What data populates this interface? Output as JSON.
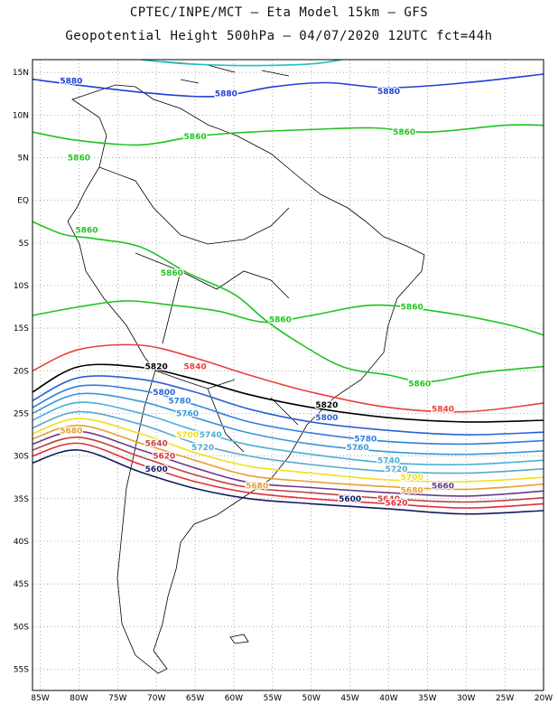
{
  "header": {
    "line1": "CPTEC/INPE/MCT –  Eta Model 15km – GFS",
    "line2": "Geopotential Height 500hPa – 04/07/2020 12UTC fct=44h"
  },
  "axes": {
    "lat_ticks": [
      "15N",
      "10N",
      "5N",
      "EQ",
      "5S",
      "10S",
      "15S",
      "20S",
      "25S",
      "30S",
      "35S",
      "40S",
      "45S",
      "50S",
      "55S"
    ],
    "lon_ticks": [
      "85W",
      "80W",
      "75W",
      "70W",
      "65W",
      "60W",
      "55W",
      "50W",
      "45W",
      "40W",
      "35W",
      "30W",
      "25W",
      "20W"
    ]
  },
  "contours": [
    {
      "value": 5880,
      "label": "5880",
      "color": "#1f3fd6",
      "labels": [
        [
          -81,
          14
        ],
        [
          -61,
          12.5
        ],
        [
          -40,
          12.8
        ]
      ]
    },
    {
      "value": 5860,
      "label": "5860",
      "color": "#1fc41f",
      "labels": [
        [
          -65,
          7.5
        ],
        [
          -80,
          5
        ],
        [
          -38,
          8
        ],
        [
          -79,
          -3.5
        ],
        [
          -68,
          -8.5
        ],
        [
          -54,
          -14
        ],
        [
          -37,
          -12.5
        ],
        [
          -36,
          -21.5
        ]
      ]
    },
    {
      "value": 5840,
      "label": "5840",
      "color": "#e8403a",
      "labels": [
        [
          -65,
          -19.5
        ],
        [
          -33,
          -24.5
        ]
      ]
    },
    {
      "value": 5820,
      "label": "5820",
      "color": "#000000",
      "labels": [
        [
          -70,
          -19.5
        ],
        [
          -48,
          -24
        ]
      ]
    },
    {
      "value": 5800,
      "label": "5800",
      "color": "#2a5fd6",
      "labels": [
        [
          -69,
          -22.5
        ],
        [
          -48,
          -25.5
        ]
      ]
    },
    {
      "value": 5780,
      "label": "5780",
      "color": "#2f7fe0",
      "labels": [
        [
          -67,
          -23.5
        ],
        [
          -43,
          -28
        ]
      ]
    },
    {
      "value": 5760,
      "label": "5760",
      "color": "#3a97d8",
      "labels": [
        [
          -66,
          -25
        ],
        [
          -44,
          -29
        ]
      ]
    },
    {
      "value": 5740,
      "label": "5740",
      "color": "#4ab0d6",
      "labels": [
        [
          -63,
          -27.5
        ],
        [
          -40,
          -30.5
        ]
      ]
    },
    {
      "value": 5720,
      "label": "5720",
      "color": "#5aa8cf",
      "labels": [
        [
          -64,
          -29
        ],
        [
          -39,
          -31.5
        ]
      ]
    },
    {
      "value": 5700,
      "label": "5700",
      "color": "#f0e020",
      "labels": [
        [
          -66,
          -27.5
        ],
        [
          -37,
          -32.5
        ]
      ]
    },
    {
      "value": 5680,
      "label": "5680",
      "color": "#e8a030",
      "labels": [
        [
          -81,
          -27
        ],
        [
          -57,
          -33.5
        ],
        [
          -37,
          -34
        ]
      ]
    },
    {
      "value": 5660,
      "label": "5660",
      "color": "#6a3a8a",
      "labels": [
        [
          -33,
          -33.5
        ]
      ]
    },
    {
      "value": 5640,
      "label": "5640",
      "color": "#c04040",
      "labels": [
        [
          -70,
          -28.5
        ],
        [
          -40,
          -35
        ]
      ]
    },
    {
      "value": 5620,
      "label": "5620",
      "color": "#e0303a",
      "labels": [
        [
          -69,
          -30
        ],
        [
          -39,
          -35.5
        ]
      ]
    },
    {
      "value": 5600,
      "label": "5600",
      "color": "#101c60",
      "labels": [
        [
          -70,
          -31.5
        ],
        [
          -45,
          -35
        ]
      ]
    }
  ]
}
